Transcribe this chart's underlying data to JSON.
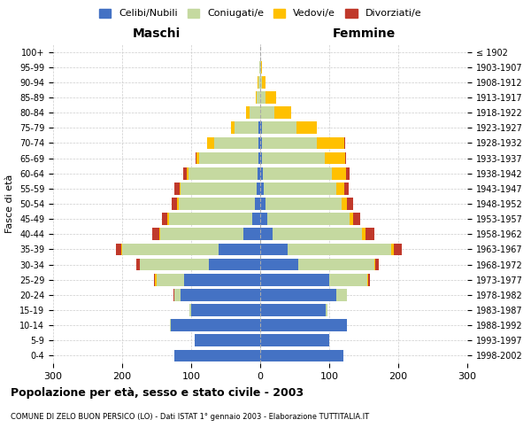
{
  "age_groups": [
    "0-4",
    "5-9",
    "10-14",
    "15-19",
    "20-24",
    "25-29",
    "30-34",
    "35-39",
    "40-44",
    "45-49",
    "50-54",
    "55-59",
    "60-64",
    "65-69",
    "70-74",
    "75-79",
    "80-84",
    "85-89",
    "90-94",
    "95-99",
    "100+"
  ],
  "birth_years": [
    "1998-2002",
    "1993-1997",
    "1988-1992",
    "1983-1987",
    "1978-1982",
    "1973-1977",
    "1968-1972",
    "1963-1967",
    "1958-1962",
    "1953-1957",
    "1948-1952",
    "1943-1947",
    "1938-1942",
    "1933-1937",
    "1928-1932",
    "1923-1927",
    "1918-1922",
    "1913-1917",
    "1908-1912",
    "1903-1907",
    "≤ 1902"
  ],
  "males": {
    "celibi": [
      125,
      95,
      130,
      100,
      115,
      110,
      75,
      60,
      25,
      12,
      8,
      5,
      4,
      3,
      2,
      2,
      0,
      0,
      0,
      0,
      0
    ],
    "coniugati": [
      0,
      0,
      1,
      3,
      10,
      40,
      100,
      140,
      120,
      120,
      110,
      110,
      100,
      85,
      65,
      35,
      15,
      5,
      3,
      1,
      0
    ],
    "vedovi": [
      0,
      0,
      0,
      0,
      0,
      2,
      0,
      1,
      1,
      2,
      2,
      2,
      3,
      4,
      10,
      5,
      5,
      2,
      1,
      0,
      0
    ],
    "divorziati": [
      0,
      0,
      0,
      0,
      1,
      2,
      5,
      8,
      10,
      8,
      8,
      8,
      5,
      1,
      0,
      0,
      0,
      0,
      0,
      0,
      0
    ]
  },
  "females": {
    "nubili": [
      120,
      100,
      125,
      95,
      110,
      100,
      55,
      40,
      18,
      10,
      8,
      5,
      4,
      3,
      2,
      2,
      0,
      0,
      0,
      0,
      0
    ],
    "coniugate": [
      0,
      0,
      1,
      3,
      15,
      55,
      110,
      150,
      130,
      120,
      110,
      105,
      100,
      90,
      80,
      50,
      20,
      8,
      3,
      1,
      0
    ],
    "vedove": [
      0,
      0,
      0,
      0,
      0,
      2,
      2,
      3,
      5,
      5,
      8,
      12,
      20,
      30,
      40,
      30,
      25,
      15,
      5,
      2,
      0
    ],
    "divorziate": [
      0,
      0,
      0,
      0,
      1,
      2,
      5,
      12,
      12,
      10,
      8,
      6,
      5,
      1,
      1,
      0,
      0,
      0,
      0,
      0,
      0
    ]
  },
  "colors": {
    "celibi": "#4472c4",
    "coniugati": "#c5d9a0",
    "vedovi": "#ffc000",
    "divorziati": "#c0392b"
  },
  "xlim": 300,
  "title": "Popolazione per età, sesso e stato civile - 2003",
  "subtitle": "COMUNE DI ZELO BUON PERSICO (LO) - Dati ISTAT 1° gennaio 2003 - Elaborazione TUTTITALIA.IT",
  "xlabel_left": "Maschi",
  "xlabel_right": "Femmine",
  "ylabel_left": "Fasce di età",
  "bg_color": "#ffffff",
  "grid_color": "#cccccc"
}
